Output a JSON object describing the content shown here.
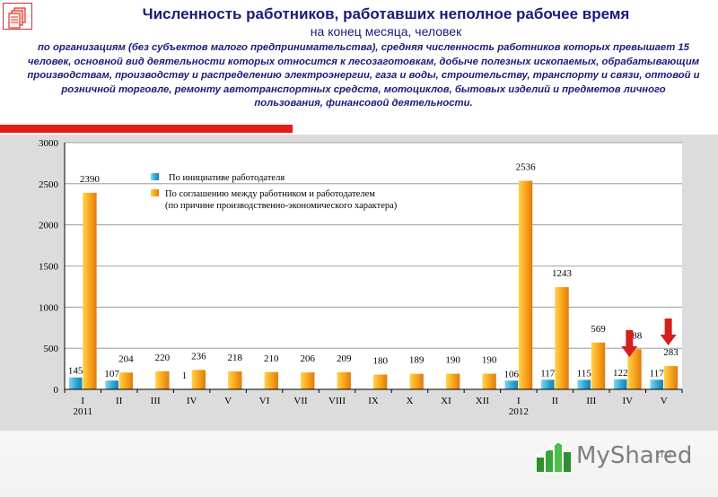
{
  "header": {
    "title": "Численность работников, работавших неполное рабочее время",
    "subtitle": "на конец месяца, человек",
    "description": "по организациям (без субъектов малого предпринимательства), средняя численность работников которых превышает 15 человек, основной вид деятельности которых относится к лесозаготовкам, добыче полезных ископаемых, обрабатывающим производствам, производству и распределению электроэнергии, газа и воды, строительству, транспорту и связи, оптовой и розничной торговле, ремонту автотранспортных средств, мотоциклов, бытовых изделий и предметов личного пользования, финансовой деятельности."
  },
  "logo": {
    "text": "MyShared",
    "domain": ".ru"
  },
  "chart_data": {
    "type": "bar",
    "categories": [
      "I",
      "II",
      "III",
      "IV",
      "V",
      "VI",
      "VII",
      "VIII",
      "IX",
      "X",
      "XI",
      "XII",
      "I",
      "II",
      "III",
      "IV",
      "V"
    ],
    "year_labels": [
      {
        "index": 0,
        "label": "2011"
      },
      {
        "index": 12,
        "label": "2012"
      }
    ],
    "series": [
      {
        "name": "По инициативе работодателя",
        "color": "#3fb0d8",
        "values": [
          145,
          107,
          null,
          1,
          null,
          null,
          null,
          null,
          null,
          null,
          null,
          null,
          106,
          117,
          115,
          122,
          117
        ]
      },
      {
        "name": "По соглашению между работником и работодателем (по причине производственно-экономического характера)",
        "color": "#f5a623",
        "values": [
          2390,
          204,
          220,
          236,
          218,
          210,
          206,
          209,
          180,
          189,
          190,
          190,
          2536,
          1243,
          569,
          488,
          283
        ]
      }
    ],
    "legend_lines": [
      "По инициативе работодателя",
      "По соглашению между работником и работодателем",
      "(по причине производственно-экономического характера)"
    ],
    "yticks": [
      0,
      500,
      1000,
      1500,
      2000,
      2500,
      3000
    ],
    "ylim": [
      0,
      3000
    ],
    "grid": true,
    "legend_position": "top-left",
    "annotations": "red arrows pointing down at the last two months (IV and V 2012)"
  }
}
